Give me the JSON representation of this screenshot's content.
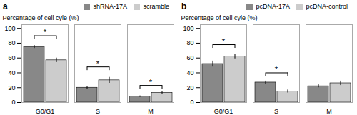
{
  "chart_data": [
    {
      "type": "bar",
      "title": "a",
      "categories": [
        "G0/G1",
        "S",
        "M"
      ],
      "series": [
        {
          "name": "shRNA-17A",
          "color": "#888888",
          "values": [
            75,
            20,
            8
          ],
          "errors": [
            2,
            2,
            1
          ]
        },
        {
          "name": "scramble",
          "color": "#cccccc",
          "values": [
            57,
            30,
            13
          ],
          "errors": [
            3,
            4,
            2
          ]
        }
      ],
      "ylabel": "Percentage of cell cyle (%)",
      "ylim": [
        0,
        105
      ],
      "yticks": [
        0,
        20,
        40,
        60,
        80,
        100
      ],
      "legend": "upper right",
      "annotations": [
        {
          "category": "G0/G1",
          "text": "*",
          "y": 90
        },
        {
          "category": "S",
          "text": "*",
          "y": 48
        },
        {
          "category": "M",
          "text": "*",
          "y": 23
        }
      ]
    },
    {
      "type": "bar",
      "title": "b",
      "categories": [
        "G0/G1",
        "S",
        "M"
      ],
      "series": [
        {
          "name": "pcDNA-17A",
          "color": "#888888",
          "values": [
            52,
            27,
            22
          ],
          "errors": [
            4,
            2,
            2
          ]
        },
        {
          "name": "pcDNA-control",
          "color": "#cccccc",
          "values": [
            62,
            15,
            26
          ],
          "errors": [
            3,
            2,
            3
          ]
        }
      ],
      "ylabel": "Percentage of cell cyle (%)",
      "ylim": [
        0,
        105
      ],
      "yticks": [
        0,
        20,
        40,
        60,
        80,
        100
      ],
      "legend": "upper right",
      "annotations": [
        {
          "category": "G0/G1",
          "text": "*",
          "y": 78
        },
        {
          "category": "S",
          "text": "*",
          "y": 40
        }
      ]
    }
  ]
}
